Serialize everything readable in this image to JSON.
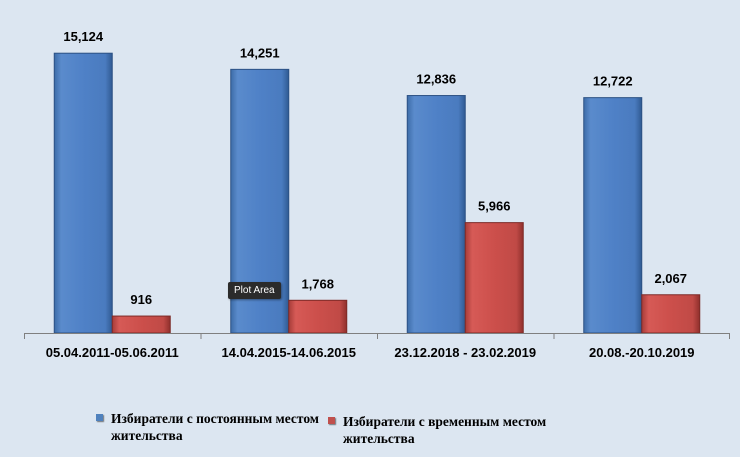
{
  "chart_data": {
    "type": "bar",
    "categories": [
      "05.04.2011-05.06.2011",
      "14.04.2015-14.06.2015",
      "23.12.2018 - 23.02.2019",
      "20.08.-20.10.2019"
    ],
    "series": [
      {
        "name": "Избиратели с постоянным местом жительства",
        "values": [
          15124,
          14251,
          12836,
          12722
        ],
        "color": "#4f81bd"
      },
      {
        "name": "Избиратели с временным местом жительства",
        "values": [
          916,
          1768,
          5966,
          2067
        ],
        "color": "#c0504d"
      }
    ],
    "value_labels": [
      [
        "15,124",
        "14,251",
        "12,836",
        "12,722"
      ],
      [
        "916",
        "1,768",
        "5,966",
        "2,067"
      ]
    ],
    "ylim": [
      0,
      16000
    ],
    "grid": false,
    "legend_position": "bottom"
  },
  "tooltip": {
    "text": "Plot Area"
  }
}
